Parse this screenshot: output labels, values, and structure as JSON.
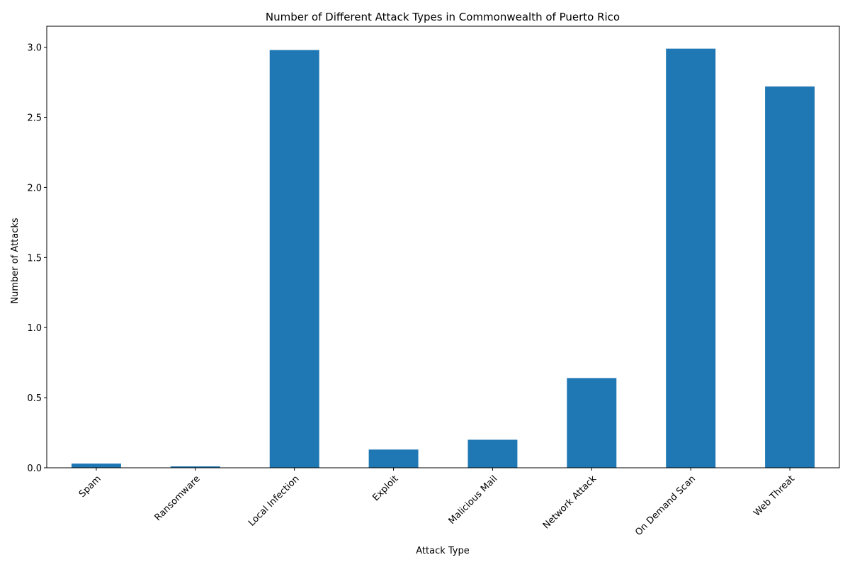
{
  "chart_data": {
    "type": "bar",
    "title": "Number of Different Attack Types in Commonwealth of Puerto Rico",
    "xlabel": "Attack Type",
    "ylabel": "Number of Attacks",
    "categories": [
      "Spam",
      "Ransomware",
      "Local Infection",
      "Exploit",
      "Malicious Mail",
      "Network Attack",
      "On Demand Scan",
      "Web Threat"
    ],
    "values": [
      0.03,
      0.01,
      2.98,
      0.13,
      0.2,
      0.64,
      2.99,
      2.72
    ],
    "ylim": [
      0,
      3.15
    ],
    "yticks": [
      "0.0",
      "0.5",
      "1.0",
      "1.5",
      "2.0",
      "2.5",
      "3.0"
    ],
    "bar_color": "#1f77b4",
    "grid": false,
    "legend": "none"
  }
}
